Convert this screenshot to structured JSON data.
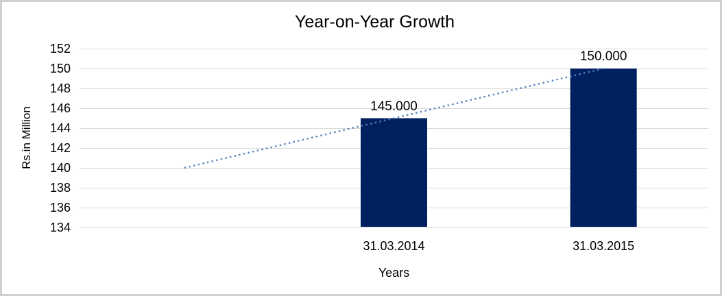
{
  "window": {
    "background": "#ffffff",
    "frame_border_color": "#cfcfcf"
  },
  "chart_data": {
    "type": "bar",
    "title": "Year-on-Year Growth",
    "xlabel": "Years",
    "ylabel": "Rs.in Million",
    "categories": [
      "31.03.2014",
      "31.03.2015"
    ],
    "values": [
      145,
      150
    ],
    "data_labels": [
      "145.000",
      "150.000"
    ],
    "yticks": [
      134,
      136,
      138,
      140,
      142,
      144,
      146,
      148,
      150,
      152
    ],
    "ylim": [
      134,
      152
    ],
    "grid": true,
    "legend": "none",
    "bar_color": "#002060",
    "gridline_color": "#d9d9d9",
    "text_color": "#000000",
    "trendline": {
      "style": "dotted",
      "color": "#4f81bd",
      "start_value": 140,
      "end_value": 150
    }
  }
}
